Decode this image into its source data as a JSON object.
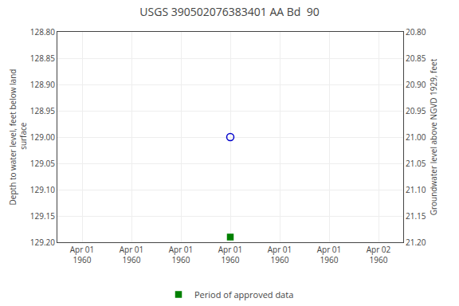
{
  "chart_data": {
    "type": "scatter",
    "title": "USGS 390502076383401 AA Bd  90",
    "ylabel": "Depth to water level, feet below land\n surface",
    "y2label": "Groundwater level above NGVD 1929, feet",
    "categories": [
      "Apr 01\n1960",
      "Apr 01\n1960",
      "Apr 01\n1960",
      "Apr 01\n1960",
      "Apr 01\n1960",
      "Apr 01\n1960",
      "Apr 02\n1960"
    ],
    "series": [
      {
        "color": "#0000cc",
        "marker": "circle-open",
        "values": [
          null,
          null,
          null,
          129.0,
          null,
          null,
          null
        ]
      },
      {
        "name": "Period of approved data",
        "color": "#008000",
        "marker": "square",
        "values": [
          null,
          null,
          null,
          129.19,
          null,
          null,
          null
        ]
      }
    ],
    "ylim": [
      129.2,
      128.8
    ],
    "yticks": [
      {
        "value": 128.8,
        "label": "128.80"
      },
      128.85,
      {
        "value": 128.9,
        "label": "128.90"
      },
      128.95,
      {
        "value": 129.0,
        "label": "129.00"
      },
      129.05,
      {
        "value": 129.1,
        "label": "129.10"
      },
      129.15,
      {
        "value": 129.2,
        "label": "129.20"
      }
    ],
    "y2lim": [
      21.2,
      20.8
    ],
    "y2ticks": [
      {
        "value": 21.2,
        "label": "21.20"
      },
      21.15,
      {
        "value": 21.1,
        "label": "21.10"
      },
      21.05,
      {
        "value": 21.0,
        "label": "21.00"
      },
      20.95,
      {
        "value": 20.9,
        "label": "20.90"
      },
      20.85,
      {
        "value": 20.8,
        "label": "20.80"
      }
    ],
    "grid": true,
    "legend": "bottom"
  }
}
